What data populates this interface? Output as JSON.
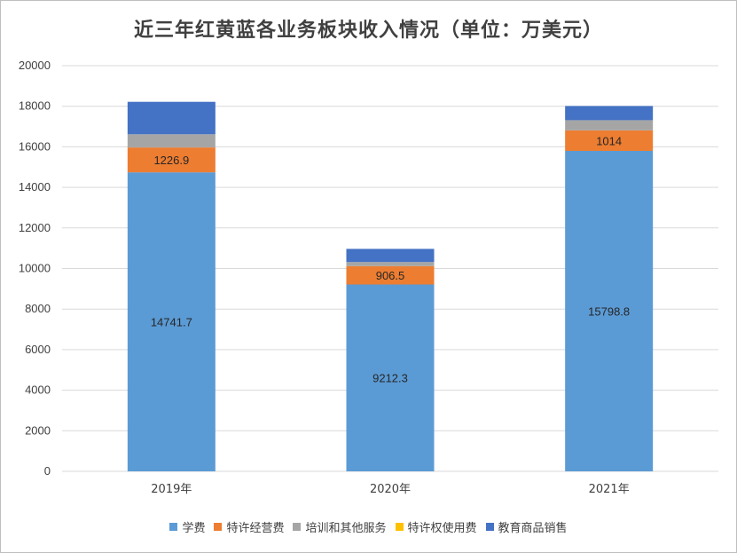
{
  "chart_data": {
    "type": "bar",
    "stacked": true,
    "title": "近三年红黄蓝各业务板块收入情况（单位：万美元）",
    "categories": [
      "2019年",
      "2020年",
      "2021年"
    ],
    "ylim": [
      0,
      20000
    ],
    "yticks": [
      0,
      2000,
      4000,
      6000,
      8000,
      10000,
      12000,
      14000,
      16000,
      18000,
      20000
    ],
    "grid": true,
    "legend_position": "bottom",
    "series": [
      {
        "name": "学费",
        "color": "#5b9bd5",
        "values": [
          14741.7,
          9212.3,
          15798.8
        ],
        "labels": [
          "14741.7",
          "9212.3",
          "15798.8"
        ]
      },
      {
        "name": "特许经营费",
        "color": "#ed7d31",
        "values": [
          1226.9,
          906.5,
          1014
        ],
        "labels": [
          "1226.9",
          "906.5",
          "1014"
        ]
      },
      {
        "name": "培训和其他服务",
        "color": "#a5a5a5",
        "values": [
          650,
          200,
          500
        ],
        "labels": [
          "",
          "",
          ""
        ]
      },
      {
        "name": "特许权使用费",
        "color": "#ffc000",
        "values": [
          0,
          0,
          0
        ],
        "labels": [
          "",
          "",
          ""
        ]
      },
      {
        "name": "教育商品销售",
        "color": "#4472c4",
        "values": [
          1600,
          650,
          700
        ],
        "labels": [
          "",
          "",
          ""
        ]
      }
    ]
  }
}
